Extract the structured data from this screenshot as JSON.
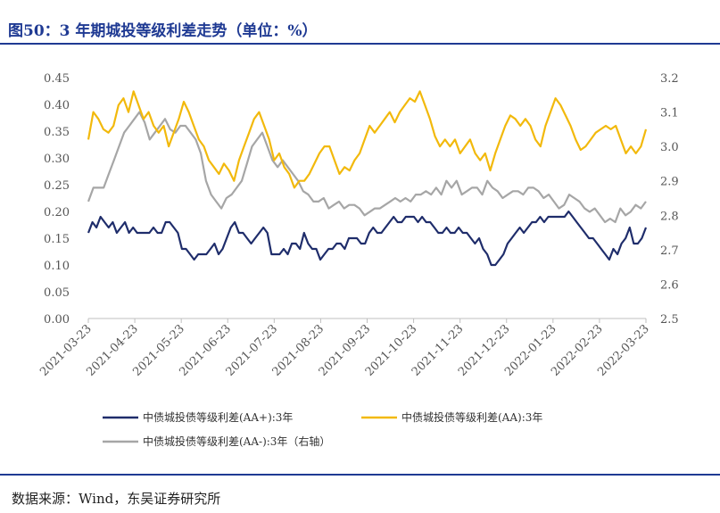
{
  "header": {
    "title": "图50：3 年期城投等级利差走势（单位：%）"
  },
  "footer": {
    "source": "数据来源：Wind，东吴证券研究所"
  },
  "chart_data": {
    "type": "line",
    "title": "图50：3 年期城投等级利差走势（单位：%）",
    "x_labels": [
      "2021-03-23",
      "2021-04-23",
      "2021-05-23",
      "2021-06-23",
      "2021-07-23",
      "2021-08-23",
      "2021-09-23",
      "2021-10-23",
      "2021-11-23",
      "2021-12-23",
      "2022-01-23",
      "2022-02-23",
      "2022-03-23"
    ],
    "y_left": {
      "ticks": [
        "0.00",
        "0.05",
        "0.10",
        "0.15",
        "0.20",
        "0.25",
        "0.30",
        "0.35",
        "0.40",
        "0.45"
      ],
      "min": 0,
      "max": 0.45
    },
    "y_right": {
      "ticks": [
        "2.5",
        "2.6",
        "2.7",
        "2.8",
        "2.9",
        "3.0",
        "3.1",
        "3.2"
      ],
      "min": 2.5,
      "max": 3.2
    },
    "grid": false,
    "legend_position": "bottom",
    "series": [
      {
        "name": "中债城投债等级利差(AA+):3年",
        "color": "#1f2d6b",
        "axis": "left",
        "values": [
          0.16,
          0.18,
          0.17,
          0.19,
          0.18,
          0.17,
          0.18,
          0.16,
          0.17,
          0.18,
          0.16,
          0.17,
          0.16,
          0.16,
          0.16,
          0.16,
          0.17,
          0.16,
          0.16,
          0.18,
          0.18,
          0.17,
          0.16,
          0.13,
          0.13,
          0.12,
          0.11,
          0.12,
          0.12,
          0.12,
          0.13,
          0.14,
          0.12,
          0.13,
          0.15,
          0.17,
          0.18,
          0.16,
          0.16,
          0.15,
          0.14,
          0.15,
          0.16,
          0.17,
          0.16,
          0.12,
          0.12,
          0.12,
          0.13,
          0.12,
          0.14,
          0.14,
          0.13,
          0.16,
          0.14,
          0.13,
          0.13,
          0.11,
          0.12,
          0.13,
          0.13,
          0.14,
          0.14,
          0.13,
          0.15,
          0.15,
          0.15,
          0.14,
          0.14,
          0.16,
          0.17,
          0.16,
          0.16,
          0.17,
          0.18,
          0.19,
          0.18,
          0.18,
          0.19,
          0.19,
          0.19,
          0.18,
          0.19,
          0.18,
          0.18,
          0.17,
          0.16,
          0.16,
          0.17,
          0.16,
          0.16,
          0.17,
          0.16,
          0.16,
          0.15,
          0.14,
          0.15,
          0.13,
          0.12,
          0.1,
          0.1,
          0.11,
          0.12,
          0.14,
          0.15,
          0.16,
          0.17,
          0.16,
          0.17,
          0.18,
          0.18,
          0.19,
          0.18,
          0.19,
          0.19,
          0.19,
          0.19,
          0.19,
          0.2,
          0.19,
          0.18,
          0.17,
          0.16,
          0.15,
          0.15,
          0.14,
          0.13,
          0.12,
          0.11,
          0.13,
          0.12,
          0.14,
          0.15,
          0.17,
          0.14,
          0.14,
          0.15,
          0.17
        ]
      },
      {
        "name": "中债城投债等级利差(AA):3年",
        "color": "#f2b90c",
        "axis": "right",
        "values": [
          3.02,
          3.1,
          3.08,
          3.05,
          3.04,
          3.06,
          3.12,
          3.14,
          3.1,
          3.16,
          3.12,
          3.08,
          3.1,
          3.06,
          3.04,
          3.06,
          3.0,
          3.04,
          3.08,
          3.13,
          3.1,
          3.06,
          3.02,
          3.0,
          2.96,
          2.94,
          2.92,
          2.95,
          2.93,
          2.9,
          2.96,
          3.0,
          3.04,
          3.08,
          3.1,
          3.06,
          3.02,
          2.96,
          2.98,
          2.94,
          2.92,
          2.88,
          2.9,
          2.9,
          2.92,
          2.95,
          2.98,
          3.0,
          3.0,
          2.96,
          2.92,
          2.94,
          2.93,
          2.96,
          2.98,
          3.02,
          3.06,
          3.04,
          3.06,
          3.08,
          3.1,
          3.07,
          3.1,
          3.12,
          3.14,
          3.13,
          3.16,
          3.12,
          3.08,
          3.03,
          3.0,
          3.02,
          3.0,
          3.02,
          2.98,
          3.0,
          3.02,
          2.98,
          2.96,
          2.98,
          2.93,
          2.98,
          3.02,
          3.06,
          3.09,
          3.08,
          3.06,
          3.08,
          3.06,
          3.02,
          3.0,
          3.06,
          3.1,
          3.14,
          3.12,
          3.09,
          3.06,
          3.02,
          2.99,
          3.0,
          3.02,
          3.04,
          3.05,
          3.06,
          3.05,
          3.06,
          3.02,
          2.98,
          3.0,
          2.98,
          3.0,
          3.05
        ],
        "axis_note": "right"
      },
      {
        "name": "中债城投债等级利差(AA-):3年（右轴）",
        "color": "#a6a6a6",
        "axis": "right",
        "values": [
          2.84,
          2.88,
          2.88,
          2.88,
          2.92,
          2.96,
          3.0,
          3.04,
          3.06,
          3.08,
          3.1,
          3.07,
          3.02,
          3.04,
          3.06,
          3.08,
          3.05,
          3.04,
          3.06,
          3.06,
          3.04,
          3.02,
          2.98,
          2.9,
          2.86,
          2.84,
          2.82,
          2.85,
          2.86,
          2.88,
          2.9,
          2.95,
          3.0,
          3.02,
          3.04,
          3.0,
          2.96,
          2.94,
          2.96,
          2.94,
          2.92,
          2.9,
          2.87,
          2.86,
          2.84,
          2.84,
          2.85,
          2.82,
          2.83,
          2.84,
          2.82,
          2.83,
          2.83,
          2.82,
          2.8,
          2.81,
          2.82,
          2.82,
          2.83,
          2.84,
          2.85,
          2.84,
          2.85,
          2.84,
          2.86,
          2.86,
          2.87,
          2.86,
          2.88,
          2.86,
          2.9,
          2.88,
          2.9,
          2.86,
          2.87,
          2.88,
          2.88,
          2.86,
          2.9,
          2.88,
          2.87,
          2.85,
          2.86,
          2.87,
          2.87,
          2.86,
          2.88,
          2.88,
          2.87,
          2.85,
          2.86,
          2.84,
          2.82,
          2.83,
          2.86,
          2.85,
          2.84,
          2.82,
          2.81,
          2.82,
          2.8,
          2.78,
          2.79,
          2.78,
          2.82,
          2.8,
          2.81,
          2.83,
          2.82,
          2.84
        ]
      }
    ]
  }
}
